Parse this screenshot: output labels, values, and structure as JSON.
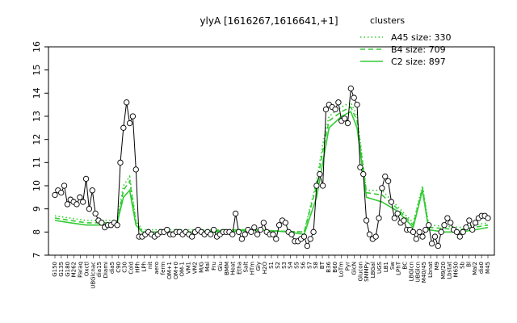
{
  "chart_data": {
    "type": "line",
    "title": "ylyA [1616267,1616641,+1]",
    "xlabel": "",
    "ylabel": "",
    "ylim": [
      7,
      16
    ],
    "yticks": [
      7,
      8,
      9,
      10,
      11,
      12,
      13,
      14,
      15,
      16
    ],
    "grid": false,
    "legend": {
      "title": "clusters",
      "placement": "top-right",
      "entries": [
        {
          "label": "A45 size: 330",
          "style": "dotted",
          "color": "#33cc33"
        },
        {
          "label": "B4 size: 709",
          "style": "dashed",
          "color": "#33cc33"
        },
        {
          "label": "C2 size: 897",
          "style": "solid",
          "color": "#33cc33"
        }
      ]
    },
    "x_labels": [
      "G150",
      "G135",
      "G180",
      "M262",
      "Paraq",
      "Oxctl",
      "UBGlcnac",
      "dia15",
      "Diami",
      "dia5",
      "C90",
      "C30",
      "Cold",
      "HPh",
      "LPh",
      "nit",
      "aero",
      "ferm",
      "OM+1",
      "OM+0",
      "OM-1",
      "VM1",
      "VM2",
      "M/G",
      "Mal",
      "Fru",
      "Glu",
      "BMM",
      "Heat",
      "Etha",
      "Salt",
      "HTm",
      "Gly",
      "H2O",
      "S1",
      "S2",
      "S3",
      "S4",
      "S5",
      "S6",
      "S7",
      "S8",
      "BT",
      "B36",
      "B60",
      "LoTm",
      "Pyr",
      "GlcN",
      "Glucon",
      "SMMPy",
      "LBGal",
      "UGS",
      "LB1",
      "Sw",
      "LPhT",
      "BC",
      "LBGlcn",
      "UBGlcn",
      "M40/45",
      "Lbnat",
      "M9",
      "M9/20",
      "Lbstat",
      "M650",
      "Sb",
      "Bl",
      "Mal2",
      "dia0",
      "M45"
    ],
    "series": [
      {
        "color": "#000000",
        "style": "points-line",
        "x": [
          0,
          1,
          2,
          3,
          4,
          5,
          6,
          7,
          8,
          9,
          10,
          11,
          12,
          13,
          14,
          15,
          16,
          17,
          18,
          19,
          20,
          21,
          22,
          23,
          24,
          25,
          26,
          27,
          28,
          29,
          30,
          31,
          32,
          33,
          34,
          35,
          36,
          37,
          38,
          39,
          40,
          41,
          42,
          43,
          44,
          45,
          46,
          47,
          48,
          49,
          50,
          51,
          52,
          53,
          54,
          55,
          56,
          57,
          58,
          59,
          60,
          61,
          62,
          63,
          64,
          65,
          66,
          67,
          68,
          69,
          70,
          71,
          72,
          73,
          74,
          75,
          76,
          77,
          78,
          79,
          80,
          81,
          82,
          83,
          84,
          85,
          86,
          87,
          88,
          89,
          90,
          91,
          92,
          93,
          94,
          95,
          96,
          97,
          98,
          99,
          100,
          101,
          102,
          103,
          104,
          105,
          106,
          107,
          108,
          109,
          110,
          111,
          112,
          113,
          114,
          115,
          116,
          117,
          118,
          119,
          120,
          121,
          122,
          123,
          124,
          125,
          126,
          127,
          128,
          129,
          130,
          131,
          132,
          133,
          134,
          135,
          136,
          137,
          138,
          139
        ],
        "y": [
          9.6,
          9.8,
          9.7,
          10.0,
          9.2,
          9.4,
          9.3,
          9.2,
          9.5,
          9.3,
          10.3,
          9.0,
          9.8,
          8.8,
          8.5,
          8.4,
          8.2,
          8.3,
          8.3,
          8.4,
          8.3,
          11.0,
          12.5,
          13.6,
          12.7,
          13.0,
          10.7,
          7.8,
          7.8,
          7.9,
          8.0,
          7.9,
          7.8,
          7.9,
          8.0,
          8.0,
          8.1,
          7.9,
          7.9,
          8.0,
          8.0,
          7.9,
          8.0,
          7.9,
          7.8,
          8.0,
          8.1,
          8.0,
          7.9,
          8.0,
          7.9,
          8.1,
          7.8,
          7.9,
          8.0,
          8.0,
          8.0,
          7.9,
          8.8,
          8.0,
          7.7,
          7.9,
          8.1,
          8.0,
          8.2,
          7.9,
          8.1,
          8.4,
          8.0,
          7.9,
          7.9,
          7.7,
          8.3,
          8.5,
          8.4,
          8.0,
          7.9,
          7.6,
          7.6,
          7.7,
          7.8,
          7.4,
          7.7,
          8.0,
          10.0,
          10.5,
          10.0,
          13.3,
          13.5,
          13.4,
          13.3,
          13.6,
          12.8,
          12.9,
          12.7,
          14.2,
          13.8,
          13.5,
          10.8,
          10.5,
          8.5,
          7.9,
          7.7,
          7.8,
          8.6,
          9.9,
          10.4,
          10.2,
          9.3,
          8.6,
          8.8,
          8.4,
          8.5,
          8.1,
          8.1,
          8.0,
          7.7,
          8.0,
          7.8,
          8.1,
          8.3,
          7.5,
          7.8,
          7.4,
          8.0,
          8.3,
          8.6,
          8.4,
          8.1,
          8.0,
          7.8,
          8.0,
          8.2,
          8.5,
          8.1,
          8.4,
          8.6,
          8.7,
          8.7,
          8.6
        ]
      },
      {
        "name": "C2 size: 897",
        "color": "#33cc33",
        "style": "solid",
        "x": [
          0,
          5,
          10,
          15,
          20,
          22,
          24,
          26,
          28,
          35,
          45,
          55,
          65,
          75,
          80,
          84,
          86,
          88,
          92,
          95,
          97,
          100,
          105,
          110,
          115,
          118,
          120,
          125,
          130,
          135,
          139
        ],
        "y": [
          8.5,
          8.4,
          8.3,
          8.3,
          8.4,
          9.5,
          9.8,
          8.3,
          8.0,
          8.0,
          8.0,
          8.0,
          8.1,
          8.0,
          7.9,
          9.5,
          11.0,
          12.5,
          13.0,
          13.2,
          12.5,
          9.5,
          9.3,
          8.9,
          8.2,
          9.8,
          8.1,
          8.0,
          8.0,
          8.1,
          8.2
        ]
      },
      {
        "name": "B4 size: 709",
        "color": "#33cc33",
        "style": "dashed",
        "x": [
          0,
          10,
          20,
          22,
          24,
          26,
          28,
          40,
          60,
          80,
          84,
          86,
          88,
          92,
          95,
          97,
          100,
          105,
          110,
          115,
          118,
          120,
          130,
          139
        ],
        "y": [
          8.6,
          8.4,
          8.4,
          9.8,
          10.2,
          8.4,
          8.0,
          8.0,
          8.1,
          8.0,
          10.0,
          11.5,
          12.8,
          13.2,
          13.4,
          12.8,
          9.7,
          9.6,
          9.0,
          8.3,
          9.9,
          8.2,
          8.1,
          8.3
        ]
      },
      {
        "name": "A45 size: 330",
        "color": "#33cc33",
        "style": "dotted",
        "x": [
          0,
          10,
          20,
          22,
          24,
          26,
          28,
          40,
          60,
          80,
          84,
          86,
          88,
          92,
          95,
          97,
          100,
          105,
          110,
          115,
          118,
          120,
          130,
          139
        ],
        "y": [
          8.7,
          8.5,
          8.5,
          10.0,
          10.4,
          8.5,
          8.1,
          8.1,
          8.1,
          8.0,
          10.2,
          11.8,
          13.0,
          13.4,
          13.6,
          13.0,
          9.8,
          9.8,
          9.1,
          8.4,
          10.0,
          8.3,
          8.2,
          8.4
        ]
      }
    ]
  }
}
